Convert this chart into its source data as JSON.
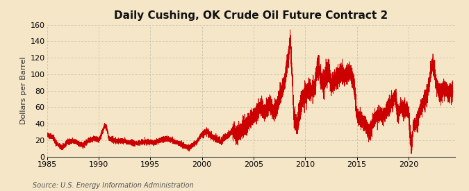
{
  "title": "Daily Cushing, OK Crude Oil Future Contract 2",
  "ylabel": "Dollars per Barrel",
  "source": "Source: U.S. Energy Information Administration",
  "xlim": [
    1985,
    2024.5
  ],
  "ylim": [
    0,
    160
  ],
  "yticks": [
    0,
    20,
    40,
    60,
    80,
    100,
    120,
    140,
    160
  ],
  "xticks": [
    1985,
    1990,
    1995,
    2000,
    2005,
    2010,
    2015,
    2020
  ],
  "line_color": "#cc0000",
  "background_color": "#f5e6c8",
  "grid_color": "#aaaaaa",
  "title_fontsize": 11,
  "label_fontsize": 8,
  "tick_fontsize": 8,
  "source_fontsize": 7
}
